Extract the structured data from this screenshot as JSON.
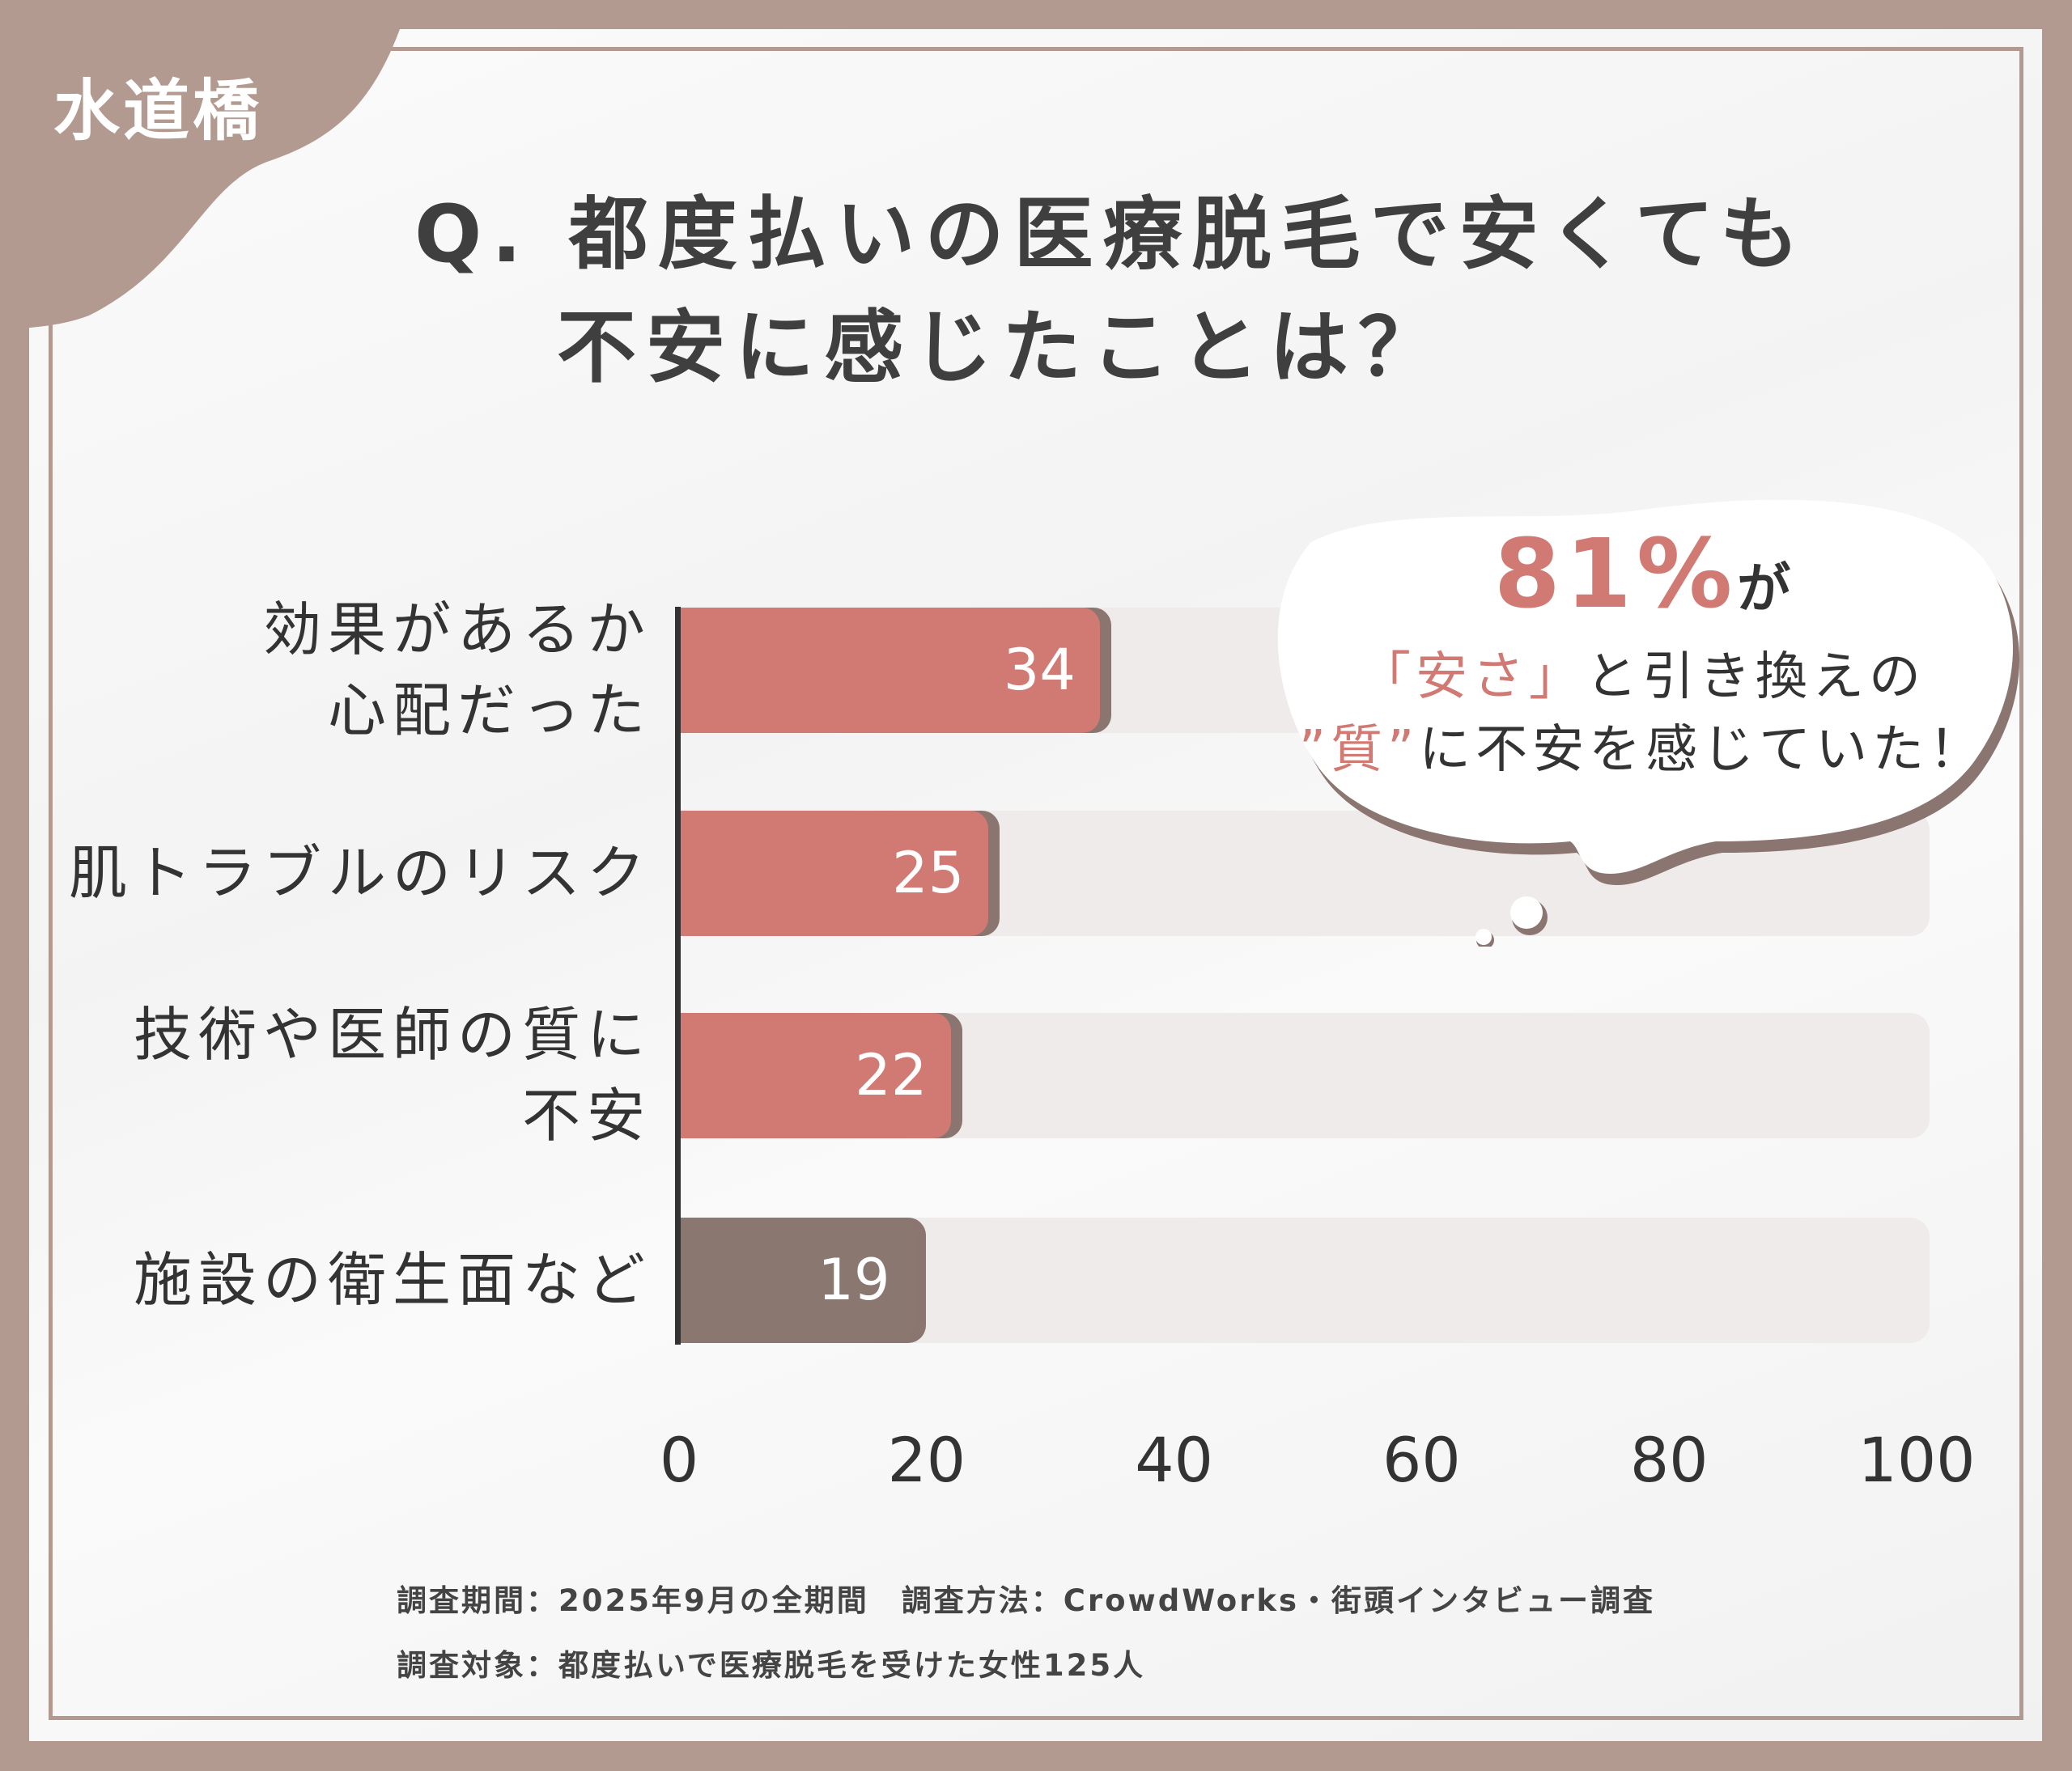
{
  "header": {
    "area": "水道橋",
    "title_line1": "Q. 都度払いの医療脱毛で安くても",
    "title_line2": "不安に感じたことは？"
  },
  "colors": {
    "accent": "#d17a74",
    "dark_bar": "#8a7770",
    "frame": "#b39a91",
    "track": "#efebea"
  },
  "chart_data": {
    "type": "bar",
    "orientation": "horizontal",
    "categories": [
      [
        "効果があるか",
        "心配だった"
      ],
      [
        "肌トラブルのリスク"
      ],
      [
        "技術や医師の質に",
        "不安"
      ],
      [
        "施設の衛生面など"
      ]
    ],
    "values": [
      34,
      25,
      22,
      19
    ],
    "value_labels": [
      "34",
      "25",
      "22",
      "19"
    ],
    "xlim": [
      0,
      100
    ],
    "ticks": [
      "0",
      "20",
      "40",
      "60",
      "80",
      "100"
    ],
    "tick_values": [
      0,
      20,
      40,
      60,
      80,
      100
    ]
  },
  "callout": {
    "percent": "81%",
    "ga": "が",
    "line2_highlight": "「安さ」",
    "line2_rest": "と引き換えの",
    "line3_highlight": "”質”",
    "line3_rest": "に不安を感じていた！"
  },
  "footer": {
    "line1": "調査期間：2025年9月の全期間　調査方法：CrowdWorks・街頭インタビュー調査",
    "line2": "調査対象：都度払いで医療脱毛を受けた女性125人"
  }
}
